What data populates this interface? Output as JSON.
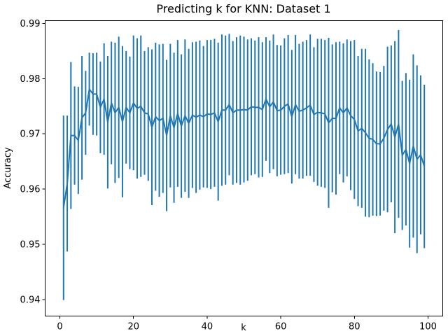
{
  "chart_data": {
    "type": "line",
    "title": "Predicting k for KNN: Dataset 1",
    "xlabel": "k",
    "ylabel": "Accuracy",
    "xlim": [
      -4,
      104
    ],
    "ylim": [
      0.937,
      0.9905
    ],
    "xticks": [
      0,
      20,
      40,
      60,
      80,
      100
    ],
    "xtick_labels": [
      "0",
      "20",
      "40",
      "60",
      "80",
      "100"
    ],
    "yticks": [
      0.94,
      0.95,
      0.96,
      0.97,
      0.98,
      0.99
    ],
    "ytick_labels": [
      "0.94",
      "0.95",
      "0.96",
      "0.97",
      "0.98",
      "0.99"
    ],
    "grid": false,
    "color": "#1f77b4",
    "x": [
      1,
      2,
      3,
      4,
      5,
      6,
      7,
      8,
      9,
      10,
      11,
      12,
      13,
      14,
      15,
      16,
      17,
      18,
      19,
      20,
      21,
      22,
      23,
      24,
      25,
      26,
      27,
      28,
      29,
      30,
      31,
      32,
      33,
      34,
      35,
      36,
      37,
      38,
      39,
      40,
      41,
      42,
      43,
      44,
      45,
      46,
      47,
      48,
      49,
      50,
      51,
      52,
      53,
      54,
      55,
      56,
      57,
      58,
      59,
      60,
      61,
      62,
      63,
      64,
      65,
      66,
      67,
      68,
      69,
      70,
      71,
      72,
      73,
      74,
      75,
      76,
      77,
      78,
      79,
      80,
      81,
      82,
      83,
      84,
      85,
      86,
      87,
      88,
      89,
      90,
      91,
      92,
      93,
      94,
      95,
      96,
      97,
      98,
      99
    ],
    "series": [
      {
        "y": [
          0.9566,
          0.961,
          0.9697,
          0.9697,
          0.9688,
          0.9729,
          0.9738,
          0.9781,
          0.9772,
          0.9772,
          0.9748,
          0.9763,
          0.9721,
          0.9756,
          0.9738,
          0.9748,
          0.9722,
          0.9748,
          0.9738,
          0.9756,
          0.9746,
          0.975,
          0.9738,
          0.9736,
          0.9712,
          0.9731,
          0.9724,
          0.9728,
          0.9697,
          0.9733,
          0.9711,
          0.9737,
          0.9714,
          0.9733,
          0.9719,
          0.9734,
          0.973,
          0.9734,
          0.9731,
          0.9736,
          0.9735,
          0.9738,
          0.9722,
          0.9743,
          0.9743,
          0.9753,
          0.9738,
          0.9743,
          0.9743,
          0.9744,
          0.9743,
          0.9749,
          0.9748,
          0.9748,
          0.9744,
          0.9763,
          0.9749,
          0.9758,
          0.9742,
          0.9743,
          0.975,
          0.9754,
          0.9731,
          0.9753,
          0.9741,
          0.9743,
          0.9747,
          0.9752,
          0.9735,
          0.9739,
          0.9738,
          0.9736,
          0.972,
          0.9728,
          0.9728,
          0.9747,
          0.9738,
          0.9747,
          0.9733,
          0.9726,
          0.9705,
          0.971,
          0.9702,
          0.9692,
          0.969,
          0.9682,
          0.9682,
          0.9692,
          0.9708,
          0.9718,
          0.9694,
          0.9718,
          0.9661,
          0.9672,
          0.9646,
          0.9678,
          0.9654,
          0.9662,
          0.9641
        ],
        "err": [
          0.0167,
          0.0123,
          0.0133,
          0.0089,
          0.0097,
          0.0112,
          0.0076,
          0.0066,
          0.0074,
          0.0075,
          0.0083,
          0.0101,
          0.012,
          0.0111,
          0.0127,
          0.0128,
          0.0137,
          0.0102,
          0.0102,
          0.0122,
          0.0127,
          0.0128,
          0.0112,
          0.0121,
          0.0141,
          0.0134,
          0.0138,
          0.0135,
          0.0137,
          0.013,
          0.0136,
          0.0133,
          0.013,
          0.0138,
          0.0135,
          0.0132,
          0.0137,
          0.0135,
          0.0128,
          0.0134,
          0.0135,
          0.0134,
          0.0143,
          0.0137,
          0.0135,
          0.0128,
          0.013,
          0.0132,
          0.0135,
          0.0132,
          0.0128,
          0.0124,
          0.0121,
          0.0127,
          0.0122,
          0.0112,
          0.012,
          0.0122,
          0.0119,
          0.0117,
          0.0123,
          0.0125,
          0.0121,
          0.0126,
          0.0122,
          0.0124,
          0.0123,
          0.0128,
          0.0122,
          0.0133,
          0.0134,
          0.0134,
          0.0154,
          0.0134,
          0.0138,
          0.012,
          0.0126,
          0.0124,
          0.0135,
          0.0144,
          0.0136,
          0.0144,
          0.0152,
          0.0143,
          0.0138,
          0.0131,
          0.013,
          0.0131,
          0.015,
          0.0142,
          0.0174,
          0.017,
          0.0135,
          0.0138,
          0.0152,
          0.0166,
          0.017,
          0.0144,
          0.0148
        ]
      }
    ]
  }
}
